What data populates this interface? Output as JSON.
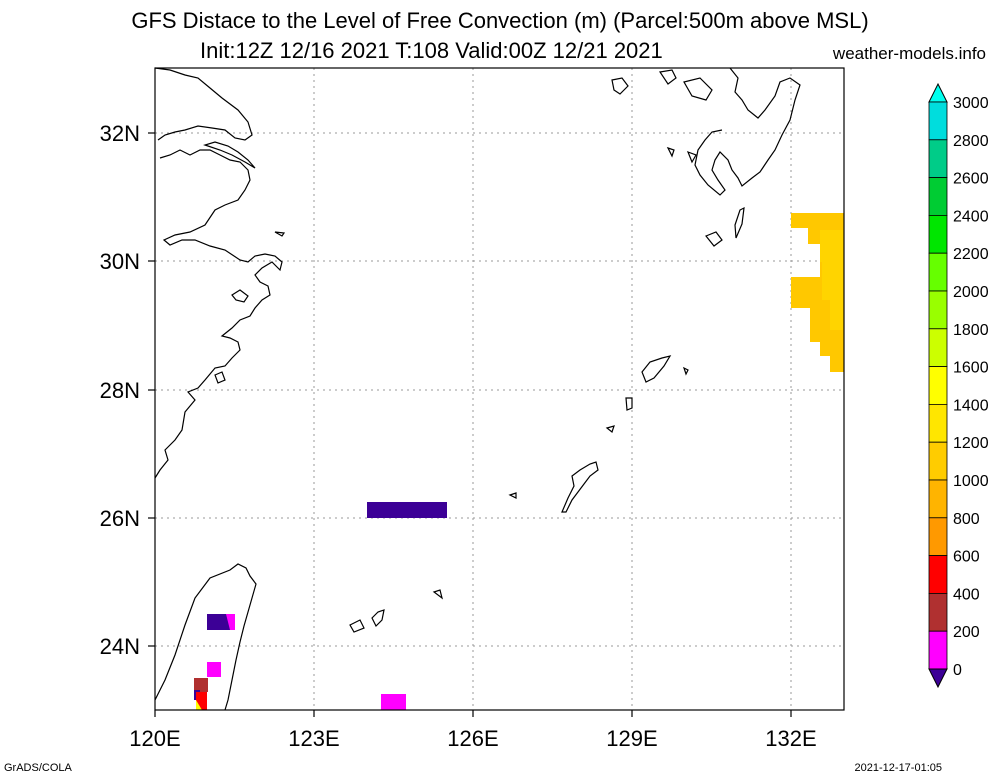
{
  "header": {
    "title": "GFS Distace to the Level of Free Convection (m) (Parcel:500m above MSL)",
    "subtitle": "Init:12Z 12/16 2021 T:108 Valid:00Z 12/21 2021",
    "site": "weather-models.info"
  },
  "footer": {
    "credit": "GrADS/COLA",
    "timestamp": "2021-12-17-01:05"
  },
  "map": {
    "lon_range": [
      120,
      133
    ],
    "lat_range": [
      23,
      33
    ],
    "lon_ticks": [
      "120E",
      "123E",
      "126E",
      "129E",
      "132E"
    ],
    "lat_ticks": [
      "24N",
      "26N",
      "28N",
      "30N",
      "32N"
    ],
    "grid": true
  },
  "colorbar": {
    "labels": [
      "0",
      "200",
      "400",
      "600",
      "800",
      "1000",
      "1200",
      "1400",
      "1600",
      "1800",
      "2000",
      "2200",
      "2400",
      "2600",
      "2800",
      "3000"
    ],
    "colors": [
      "#3c0096",
      "#ff00ff",
      "#b03030",
      "#ff0000",
      "#ff9900",
      "#ffb400",
      "#ffcc00",
      "#ffe600",
      "#ffff00",
      "#ccff00",
      "#99ff00",
      "#66ff00",
      "#00e600",
      "#00cc33",
      "#00cc88",
      "#00dddd",
      "#00ffee"
    ]
  }
}
